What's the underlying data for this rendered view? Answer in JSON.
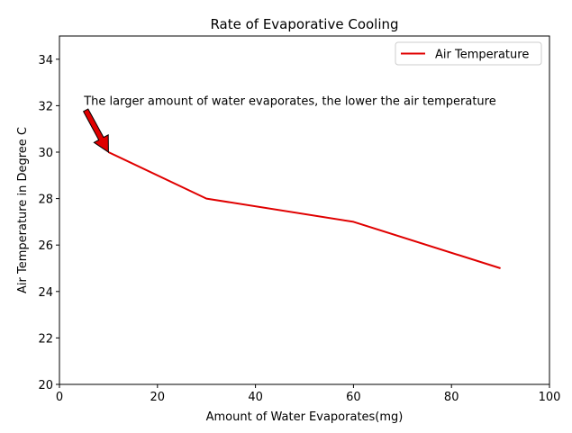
{
  "chart_data": {
    "type": "line",
    "title": "Rate of Evaporative Cooling",
    "xlabel": "Amount of Water Evaporates(mg)",
    "ylabel": "Air Temperature in Degree C",
    "xlim": [
      0,
      100
    ],
    "ylim": [
      20,
      35
    ],
    "xticks": [
      0,
      20,
      40,
      60,
      80,
      100
    ],
    "yticks": [
      20,
      22,
      24,
      26,
      28,
      30,
      32,
      34
    ],
    "grid": false,
    "legend_position": "top-right",
    "series": [
      {
        "name": "Air Temperature",
        "color": "#e00000",
        "x": [
          10,
          30,
          60,
          90
        ],
        "y": [
          30,
          28,
          27,
          25
        ]
      }
    ],
    "annotations": [
      {
        "text": "The larger amount of water evaporates, the lower the air temperature",
        "text_at": [
          5,
          32
        ],
        "arrow_to": [
          10,
          30
        ],
        "arrow_color": "#e00000"
      }
    ]
  }
}
